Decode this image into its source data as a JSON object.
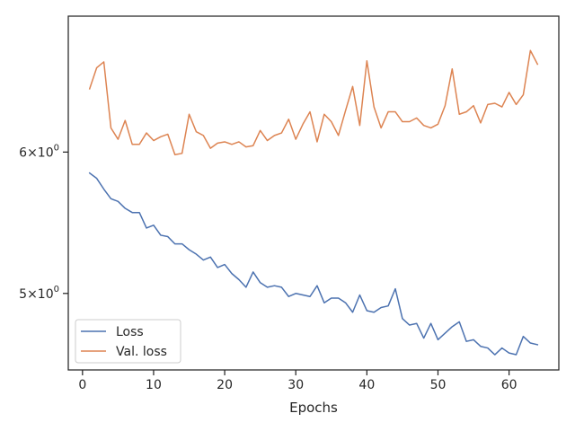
{
  "chart_data": {
    "type": "line",
    "xlabel": "Epochs",
    "ylabel": "",
    "yscale": "log",
    "xlim": [
      -2,
      67
    ],
    "ylim": [
      4.53,
      7.15
    ],
    "x_ticks": [
      0,
      10,
      20,
      30,
      40,
      50,
      60
    ],
    "y_ticks": [
      {
        "value": 5.0,
        "label_base": "5",
        "label_exp": "0"
      },
      {
        "value": 6.0,
        "label_base": "6",
        "label_exp": "0"
      }
    ],
    "tick_label_sep": "×10",
    "grid": false,
    "legend": "lower-left",
    "series": [
      {
        "name": "Loss",
        "color": "#4c72b0",
        "x": [
          1,
          2,
          3,
          4,
          5,
          6,
          7,
          8,
          9,
          10,
          11,
          12,
          13,
          14,
          15,
          16,
          17,
          18,
          19,
          20,
          21,
          22,
          23,
          24,
          25,
          26,
          27,
          28,
          29,
          30,
          31,
          32,
          33,
          34,
          35,
          36,
          37,
          38,
          39,
          40,
          41,
          42,
          43,
          44,
          45,
          46,
          47,
          48,
          49,
          50,
          51,
          52,
          53,
          54,
          55,
          56,
          57,
          58,
          59,
          60,
          61,
          62,
          63,
          64
        ],
        "values": [
          5.84,
          5.8,
          5.72,
          5.65,
          5.63,
          5.58,
          5.55,
          5.55,
          5.44,
          5.46,
          5.39,
          5.38,
          5.33,
          5.33,
          5.29,
          5.26,
          5.22,
          5.24,
          5.17,
          5.19,
          5.13,
          5.09,
          5.04,
          5.14,
          5.07,
          5.04,
          5.05,
          5.04,
          4.98,
          5.0,
          4.99,
          4.98,
          5.05,
          4.94,
          4.97,
          4.97,
          4.94,
          4.88,
          4.99,
          4.89,
          4.88,
          4.91,
          4.92,
          5.03,
          4.84,
          4.8,
          4.81,
          4.72,
          4.81,
          4.71,
          4.75,
          4.79,
          4.82,
          4.7,
          4.71,
          4.67,
          4.66,
          4.62,
          4.66,
          4.63,
          4.62,
          4.73,
          4.69,
          4.68
        ]
      },
      {
        "name": "Val. loss",
        "color": "#dd8452",
        "x": [
          1,
          2,
          3,
          4,
          5,
          6,
          7,
          8,
          9,
          10,
          11,
          12,
          13,
          14,
          15,
          16,
          17,
          18,
          19,
          20,
          21,
          22,
          23,
          24,
          25,
          26,
          27,
          28,
          29,
          30,
          31,
          32,
          33,
          34,
          35,
          36,
          37,
          38,
          39,
          40,
          41,
          42,
          43,
          44,
          45,
          46,
          47,
          48,
          49,
          50,
          51,
          52,
          53,
          54,
          55,
          56,
          57,
          58,
          59,
          60,
          61,
          62,
          63,
          64
        ],
        "values": [
          6.51,
          6.69,
          6.74,
          6.19,
          6.1,
          6.25,
          6.06,
          6.06,
          6.15,
          6.09,
          6.12,
          6.14,
          5.98,
          5.99,
          6.3,
          6.16,
          6.13,
          6.03,
          6.07,
          6.08,
          6.06,
          6.08,
          6.04,
          6.05,
          6.17,
          6.09,
          6.13,
          6.15,
          6.26,
          6.1,
          6.22,
          6.32,
          6.08,
          6.3,
          6.24,
          6.13,
          6.33,
          6.53,
          6.21,
          6.75,
          6.36,
          6.19,
          6.32,
          6.32,
          6.24,
          6.24,
          6.27,
          6.21,
          6.19,
          6.22,
          6.37,
          6.68,
          6.3,
          6.32,
          6.37,
          6.23,
          6.38,
          6.39,
          6.36,
          6.48,
          6.38,
          6.46,
          6.84,
          6.72
        ]
      }
    ]
  }
}
